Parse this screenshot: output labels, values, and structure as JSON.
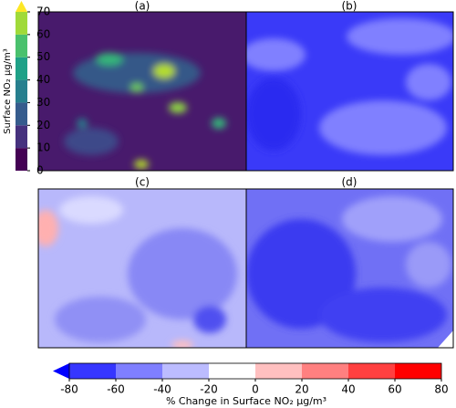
{
  "panels": [
    "(a)",
    "(b)",
    "(c)",
    "(d)"
  ],
  "colorbar_top": {
    "label": "Surface NO₂ µg/m³",
    "ticks": [
      0,
      10,
      20,
      30,
      40,
      50,
      60,
      70
    ],
    "colors": [
      "#440154",
      "#46327e",
      "#365c8d",
      "#277f8e",
      "#1fa187",
      "#4ac16d",
      "#a0da39"
    ],
    "extend_color": "#fde725"
  },
  "colorbar_bottom": {
    "label": "% Change in Surface NO₂ µg/m³",
    "ticks": [
      -80,
      -60,
      -40,
      -20,
      0,
      20,
      40,
      60,
      80
    ],
    "colors": [
      "#3636ff",
      "#7f7fff",
      "#bcbcff",
      "#ffffff",
      "#ffc0c0",
      "#ff8080",
      "#ff4040",
      "#ff0000"
    ],
    "extend_color": "#0000ff"
  }
}
